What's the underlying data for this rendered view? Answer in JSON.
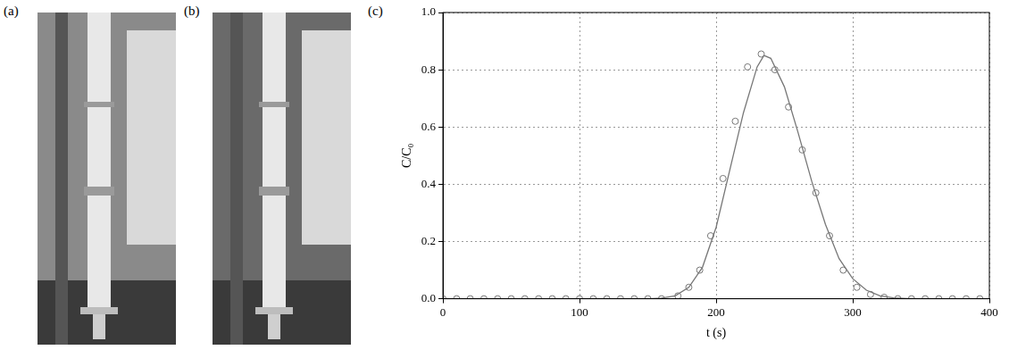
{
  "photos": [
    "(a)",
    "(b)"
  ],
  "chart_data": {
    "type": "scatter",
    "panel_label": "(c)",
    "x_label": "t (s)",
    "y_label": "C/C₀",
    "xlim": [
      0,
      400
    ],
    "xticks": [
      0,
      100,
      200,
      300,
      400
    ],
    "ylim": [
      0,
      1.0
    ],
    "yticks": [
      {
        "value": 0,
        "label": "0.0"
      },
      {
        "value": 0.2,
        "label": "0.2"
      },
      {
        "value": 0.4,
        "label": "0.4"
      },
      {
        "value": 0.6,
        "label": "0.6"
      },
      {
        "value": 0.8,
        "label": "0.8"
      },
      {
        "value": 1.0,
        "label": "1.0"
      }
    ],
    "grid": true,
    "series": [
      {
        "type": "scatter",
        "marker": "circle",
        "color": "#777777",
        "x": [
          0,
          10,
          20,
          30,
          40,
          50,
          60,
          70,
          80,
          90,
          100,
          110,
          120,
          130,
          140,
          150,
          160,
          172,
          180,
          188,
          196,
          205,
          214,
          223,
          233,
          243,
          253,
          263,
          273,
          283,
          293,
          303,
          313,
          323,
          333,
          343,
          353,
          363,
          373,
          383,
          393
        ],
        "values": [
          0,
          0,
          0,
          0,
          0,
          0,
          0,
          0,
          0,
          0,
          0,
          0,
          0,
          0,
          0,
          0,
          0,
          0.01,
          0.04,
          0.1,
          0.22,
          0.42,
          0.62,
          0.81,
          0.855,
          0.8,
          0.67,
          0.52,
          0.37,
          0.22,
          0.1,
          0.04,
          0.015,
          0.005,
          0,
          0,
          0,
          0,
          0,
          0,
          0
        ]
      },
      {
        "type": "line",
        "line_style": "solid",
        "color": "#777777",
        "x": [
          150,
          160,
          170,
          180,
          190,
          200,
          210,
          220,
          230,
          235,
          240,
          250,
          260,
          270,
          280,
          290,
          300,
          310,
          320,
          330,
          340,
          350
        ],
        "values": [
          0,
          0.002,
          0.01,
          0.04,
          0.11,
          0.25,
          0.45,
          0.65,
          0.81,
          0.85,
          0.84,
          0.74,
          0.58,
          0.41,
          0.26,
          0.14,
          0.07,
          0.03,
          0.01,
          0.003,
          0.001,
          0
        ]
      }
    ]
  }
}
